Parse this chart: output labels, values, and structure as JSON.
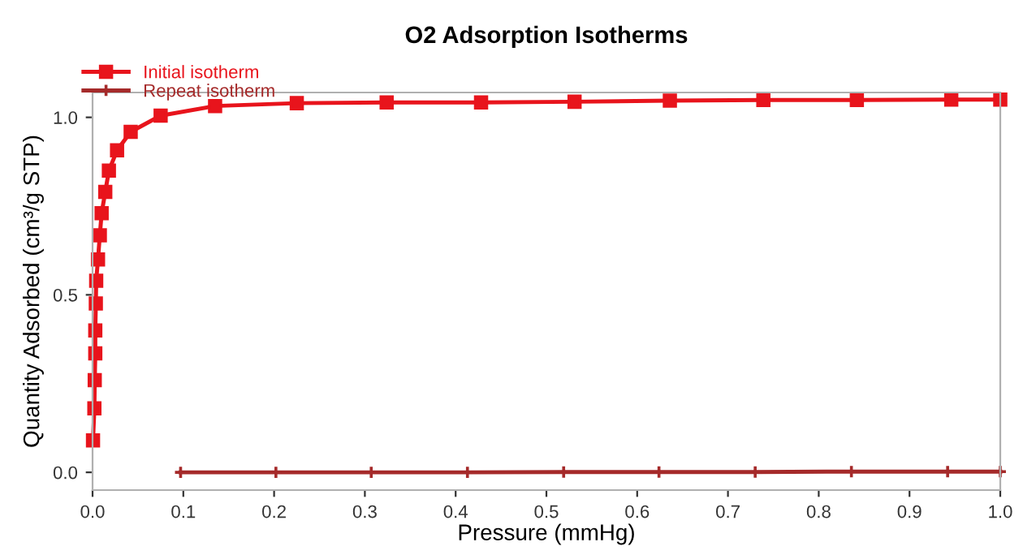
{
  "chart_data": {
    "type": "line",
    "title": "O2 Adsorption Isotherms",
    "xlabel": "Pressure (mmHg)",
    "ylabel": "Quantity Adsorbed (cm³/g STP)",
    "xlim": [
      0,
      1
    ],
    "ylim": [
      -0.05,
      1.07
    ],
    "xticks": [
      {
        "value": 0,
        "label": "0.0"
      },
      0.1,
      0.2,
      0.3,
      0.4,
      0.5,
      0.6,
      0.7,
      0.8,
      0.9,
      {
        "value": 1,
        "label": "1.0"
      }
    ],
    "yticks": [
      {
        "value": 0,
        "label": "0.0"
      },
      0.5,
      {
        "value": 1,
        "label": "1.0"
      }
    ],
    "grid": false,
    "legend": "top left",
    "series": [
      {
        "name": "Initial isotherm",
        "color": "#e8141c",
        "marker": "square",
        "x": [
          0.0005,
          0.002,
          0.0024,
          0.003,
          0.003,
          0.0036,
          0.004,
          0.006,
          0.008,
          0.01,
          0.014,
          0.018,
          0.027,
          0.042,
          0.075,
          0.135,
          0.225,
          0.324,
          0.428,
          0.531,
          0.636,
          0.739,
          0.842,
          0.946,
          1.0
        ],
        "values": [
          0.09,
          0.18,
          0.26,
          0.335,
          0.4,
          0.476,
          0.54,
          0.6,
          0.668,
          0.73,
          0.79,
          0.85,
          0.907,
          0.959,
          1.005,
          1.032,
          1.04,
          1.042,
          1.042,
          1.044,
          1.047,
          1.049,
          1.049,
          1.05,
          1.05
        ]
      },
      {
        "name": "Repeat isotherm",
        "color": "#a52a2a",
        "marker": "cross",
        "x": [
          0.097,
          0.202,
          0.307,
          0.413,
          0.519,
          0.624,
          0.73,
          0.836,
          0.942,
          1.0
        ],
        "values": [
          0,
          0,
          0,
          0,
          0.001,
          0.001,
          0.001,
          0.002,
          0.002,
          0.002
        ]
      }
    ]
  }
}
